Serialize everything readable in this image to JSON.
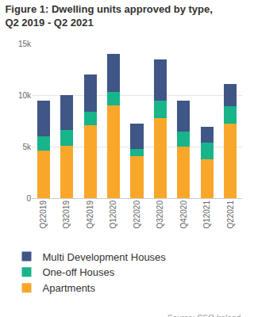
{
  "chart_data": {
    "type": "bar",
    "title": "Figure 1: Dwelling units approved by type,\nQ2 2019 - Q2 2021",
    "categories": [
      "Q22019",
      "Q32019",
      "Q42019",
      "Q12020",
      "Q22020",
      "Q32020",
      "Q42020",
      "Q12021",
      "Q22021"
    ],
    "series": [
      {
        "name": "Apartments",
        "color": "#f9a72b",
        "values": [
          4600,
          5100,
          7100,
          9000,
          4100,
          7800,
          5000,
          3800,
          7200
        ]
      },
      {
        "name": "One-off Houses",
        "color": "#18b48a",
        "values": [
          1400,
          1500,
          1300,
          1300,
          700,
          1700,
          1500,
          1600,
          1700
        ]
      },
      {
        "name": "Multi Development Houses",
        "color": "#3f5686",
        "values": [
          3500,
          3400,
          3600,
          3700,
          2400,
          4000,
          3000,
          1500,
          2200
        ]
      }
    ],
    "ylim": [
      0,
      15000
    ],
    "yticks": [
      0,
      {
        "value": 5000,
        "label": "5k"
      },
      {
        "value": 10000,
        "label": "10k"
      },
      {
        "value": 15000,
        "label": "15k"
      }
    ],
    "grid": true,
    "stacked": true,
    "legend": "bottom",
    "annotations": [
      {
        "text": "Source: CSO Ireland"
      }
    ]
  }
}
